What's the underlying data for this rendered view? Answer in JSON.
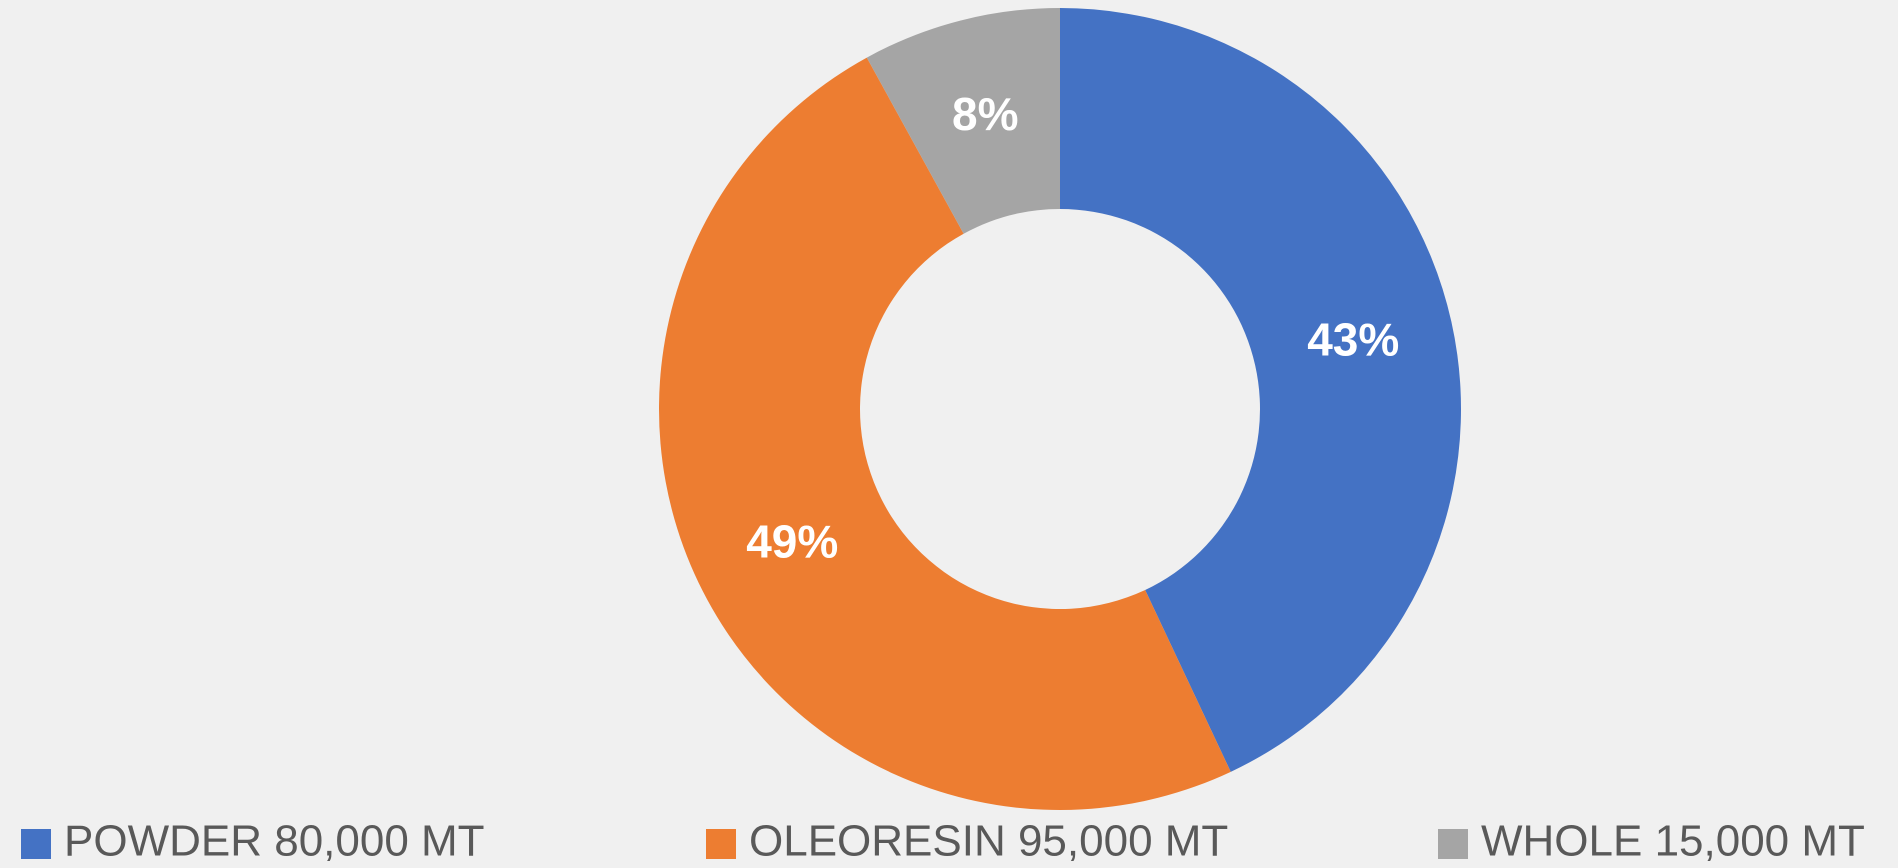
{
  "chart_data": {
    "type": "donut",
    "categories": [
      "POWDER 80,000 MT",
      "OLEORESIN 95,000 MT",
      "WHOLE 15,000 MT"
    ],
    "values": [
      43,
      49,
      8
    ],
    "value_labels": [
      "43%",
      "49%",
      "8%"
    ],
    "colors": [
      "#4472c4",
      "#ed7d31",
      "#a5a5a5"
    ],
    "legend": "bottom"
  }
}
